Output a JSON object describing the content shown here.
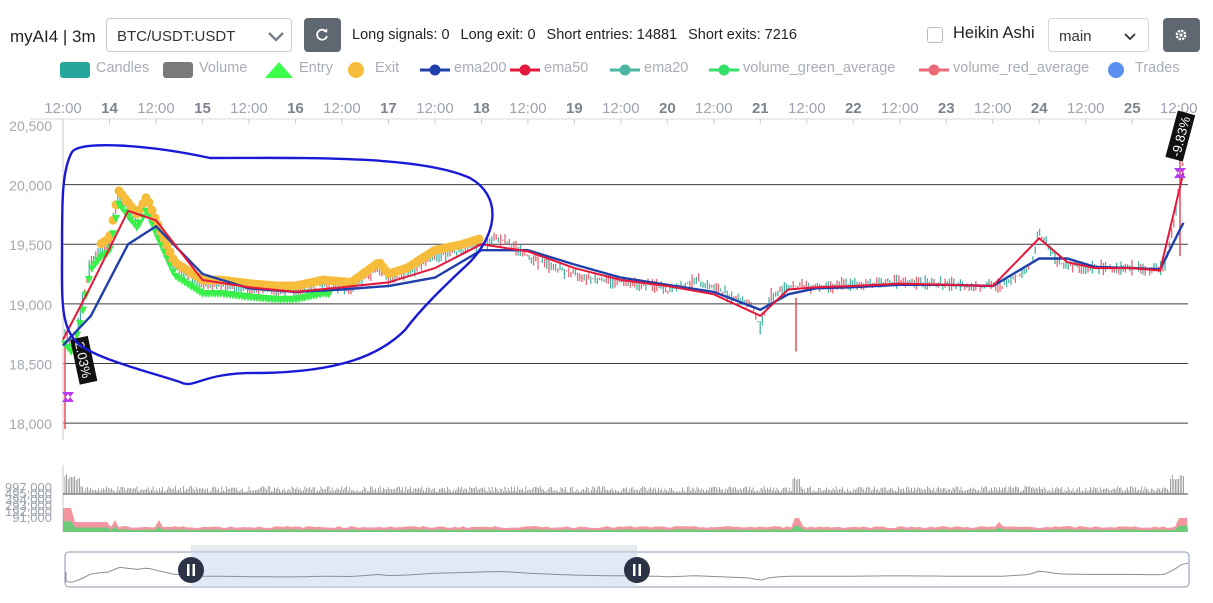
{
  "app": {
    "title": "myAI4 | 3m"
  },
  "pair_select": {
    "value": "BTC/USDT:USDT"
  },
  "stats": {
    "long_signals": "Long signals: 0",
    "long_exit": "Long exit: 0",
    "short_entries": "Short entries: 14881",
    "short_exits": "Short exits: 7216"
  },
  "heikin_ashi": {
    "label": "Heikin Ashi",
    "checked": false
  },
  "mode_select": {
    "value": "main"
  },
  "icons": {
    "refresh": "refresh-icon",
    "settings": "gear-icon"
  },
  "legend": [
    {
      "label": "Candles",
      "color": "#26a69a",
      "kind": "box"
    },
    {
      "label": "Volume",
      "color": "#7a7a7a",
      "kind": "box"
    },
    {
      "label": "Entry",
      "color": "#3cff4a",
      "kind": "triangle"
    },
    {
      "label": "Exit",
      "color": "#f6bd3c",
      "kind": "dot"
    },
    {
      "label": "ema200",
      "color": "#1f3faa",
      "kind": "line"
    },
    {
      "label": "ema50",
      "color": "#e5173a",
      "kind": "line"
    },
    {
      "label": "ema20",
      "color": "#4db6a3",
      "kind": "line"
    },
    {
      "label": "volume_green_average",
      "color": "#35e06a",
      "kind": "line"
    },
    {
      "label": "volume_red_average",
      "color": "#ec6b77",
      "kind": "line"
    },
    {
      "label": "Trades",
      "color": "#5b8ff0",
      "kind": "dot"
    }
  ],
  "x_axis": {
    "ticks": [
      "12:00",
      "14",
      "12:00",
      "15",
      "12:00",
      "16",
      "12:00",
      "17",
      "12:00",
      "18",
      "12:00",
      "19",
      "12:00",
      "20",
      "12:00",
      "21",
      "12:00",
      "22",
      "12:00",
      "23",
      "12:00",
      "24",
      "12:00",
      "25",
      "12:00"
    ]
  },
  "y_axis": {
    "ticks": [
      "20,500",
      "20,000",
      "19,500",
      "19,000",
      "18,500",
      "18,000"
    ],
    "min": 17900,
    "max": 20500
  },
  "volume_axis": {
    "ticks": [
      "997,000",
      "495,000",
      "394,000",
      "293,000",
      "192,000",
      "91,000"
    ]
  },
  "trade_labels": {
    "left": "2.03%",
    "right": "-9.83%"
  },
  "chart_data": {
    "type": "line",
    "title": "",
    "xlabel": "",
    "ylabel": "",
    "ylim": [
      17900,
      20500
    ],
    "x_range_days": [
      13.5,
      25.6
    ],
    "price_x_day": [
      13.5,
      13.6,
      13.7,
      13.8,
      13.9,
      14.0,
      14.1,
      14.2,
      14.3,
      14.4,
      14.5,
      14.7,
      14.9,
      15.0,
      15.2,
      15.5,
      15.8,
      16.0,
      16.3,
      16.6,
      16.9,
      17.0,
      17.2,
      17.5,
      17.8,
      18.0,
      18.2,
      18.5,
      18.8,
      19.0,
      19.3,
      19.6,
      19.9,
      20.0,
      20.3,
      20.6,
      20.9,
      21.0,
      21.1,
      21.3,
      21.6,
      21.9,
      22.0,
      22.3,
      22.6,
      22.9,
      23.0,
      23.3,
      23.6,
      23.9,
      24.0,
      24.2,
      24.5,
      24.8,
      25.0,
      25.2,
      25.35,
      25.45,
      25.55
    ],
    "price_y": [
      18750,
      18650,
      18950,
      19350,
      19450,
      19500,
      19900,
      19800,
      19700,
      19850,
      19650,
      19300,
      19200,
      19150,
      19150,
      19120,
      19100,
      19100,
      19150,
      19130,
      19300,
      19200,
      19250,
      19400,
      19450,
      19500,
      19550,
      19400,
      19300,
      19250,
      19200,
      19180,
      19150,
      19100,
      19200,
      19100,
      19000,
      18800,
      19050,
      19150,
      19150,
      19160,
      19160,
      19180,
      19180,
      19170,
      19160,
      19150,
      19150,
      19300,
      19600,
      19350,
      19300,
      19300,
      19300,
      19280,
      19300,
      19700,
      20200
    ],
    "series": [
      {
        "name": "ema200",
        "x": [
          13.5,
          13.8,
          14.2,
          14.5,
          15.0,
          15.5,
          16.0,
          16.5,
          17.0,
          17.5,
          18.0,
          18.5,
          19.0,
          19.5,
          20.0,
          20.5,
          21.0,
          21.3,
          21.6,
          22.0,
          22.5,
          23.0,
          23.5,
          24.0,
          24.3,
          24.6,
          25.0,
          25.3,
          25.55
        ],
        "y": [
          18650,
          18900,
          19500,
          19650,
          19250,
          19130,
          19100,
          19120,
          19150,
          19220,
          19450,
          19450,
          19330,
          19220,
          19160,
          19100,
          18950,
          19080,
          19130,
          19140,
          19160,
          19160,
          19150,
          19380,
          19380,
          19310,
          19300,
          19290,
          19680
        ]
      },
      {
        "name": "ema50",
        "x": [
          13.5,
          13.8,
          14.2,
          14.5,
          15.0,
          15.5,
          16.0,
          16.5,
          17.0,
          17.5,
          18.0,
          18.5,
          19.0,
          19.5,
          20.0,
          20.5,
          21.0,
          21.3,
          21.6,
          22.0,
          22.5,
          23.0,
          23.5,
          24.0,
          24.3,
          24.6,
          25.0,
          25.3,
          25.55
        ],
        "y": [
          18700,
          19150,
          19780,
          19700,
          19200,
          19140,
          19100,
          19140,
          19180,
          19300,
          19500,
          19440,
          19300,
          19200,
          19150,
          19080,
          18900,
          19120,
          19140,
          19150,
          19170,
          19160,
          19150,
          19550,
          19350,
          19300,
          19300,
          19280,
          20100
        ]
      }
    ]
  }
}
